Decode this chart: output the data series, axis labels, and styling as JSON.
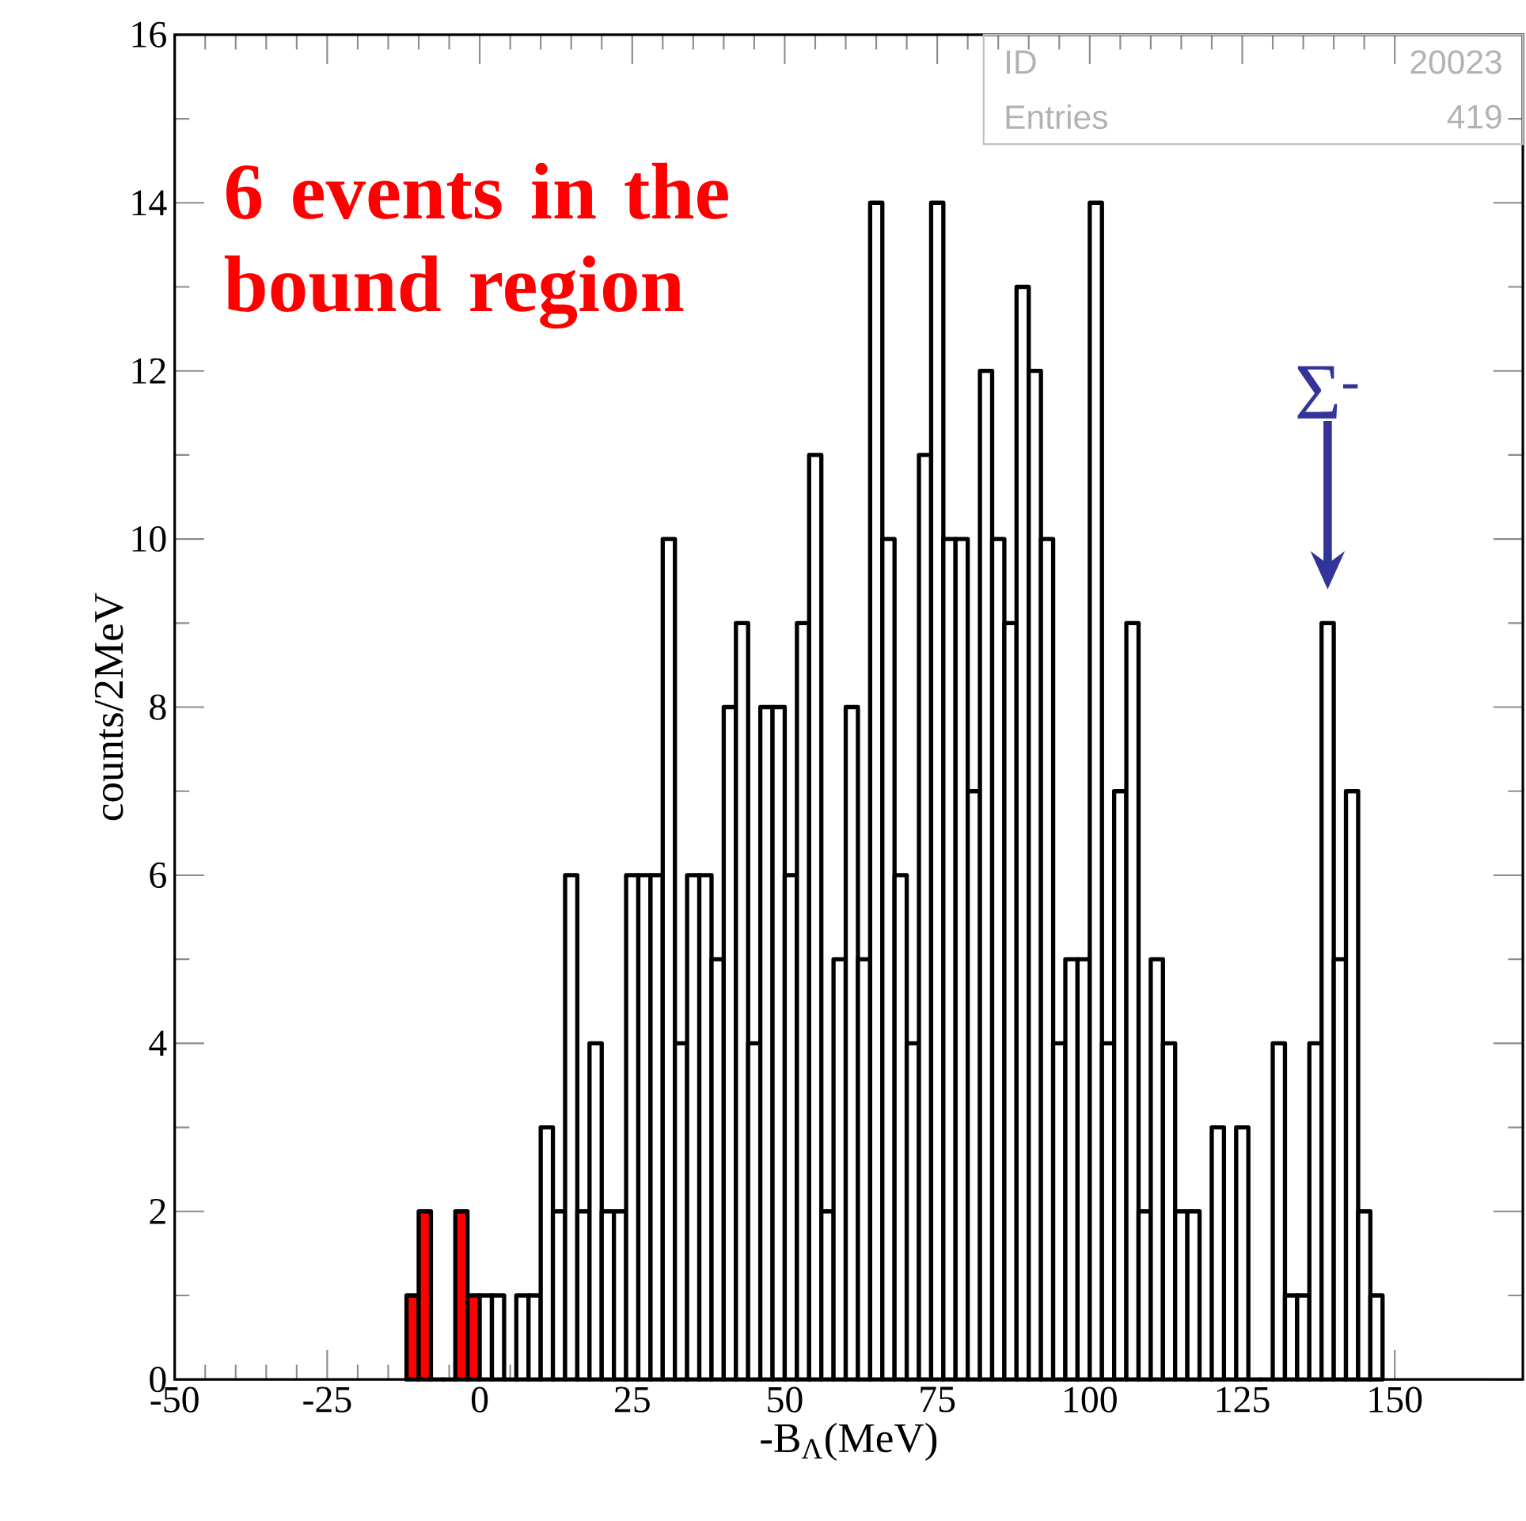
{
  "chart_data": {
    "type": "histogram",
    "xlabel": "-B$_{Λ}$(MeV)",
    "ylabel": "counts/2MeV",
    "bins": [
      -12,
      -10,
      -8,
      -6,
      -4,
      -2,
      0,
      2,
      4,
      6,
      8,
      10,
      12,
      14,
      16,
      18,
      20,
      22,
      24,
      26,
      28,
      30,
      32,
      34,
      36,
      38,
      40,
      42,
      44,
      46,
      48,
      50,
      52,
      54,
      56,
      58,
      60,
      62,
      64,
      66,
      68,
      70,
      72,
      74,
      76,
      78,
      80,
      82,
      84,
      86,
      88,
      90,
      92,
      94,
      96,
      98,
      100,
      102,
      104,
      106,
      108,
      110,
      112,
      114,
      116,
      118,
      120,
      122,
      124,
      126,
      128,
      130,
      132,
      134,
      136,
      138,
      140,
      142,
      144,
      146,
      148
    ],
    "values": [
      1,
      2,
      0,
      0,
      2,
      1,
      1,
      1,
      0,
      1,
      1,
      3,
      2,
      6,
      2,
      4,
      2,
      2,
      6,
      6,
      6,
      10,
      4,
      6,
      6,
      5,
      8,
      9,
      4,
      8,
      8,
      6,
      9,
      11,
      2,
      5,
      8,
      5,
      14,
      10,
      6,
      4,
      11,
      14,
      10,
      10,
      7,
      12,
      10,
      9,
      13,
      12,
      10,
      4,
      5,
      5,
      14,
      4,
      7,
      9,
      2,
      5,
      4,
      2,
      2,
      0,
      3,
      0,
      3,
      0,
      0,
      4,
      1,
      1,
      4,
      9,
      5,
      7,
      2,
      1
    ],
    "colors": [
      "#ff0000",
      "#ff0000",
      "#ff0000",
      "#ff0000",
      "#ff0000",
      "#ff0000",
      "#ffffff",
      "#ffffff",
      "#ffffff",
      "#ffffff",
      "#ffffff",
      "#ffffff",
      "#ffffff",
      "#ffffff",
      "#ffffff",
      "#ffffff",
      "#ffffff",
      "#ffffff",
      "#ffffff",
      "#ffffff",
      "#ffffff",
      "#ffffff",
      "#ffffff",
      "#ffffff",
      "#ffffff",
      "#ffffff",
      "#ffffff",
      "#ffffff",
      "#ffffff",
      "#ffffff",
      "#ffffff",
      "#ffffff",
      "#ffffff",
      "#ffffff",
      "#ffffff",
      "#ffffff",
      "#ffffff",
      "#ffffff",
      "#ffffff",
      "#ffffff",
      "#ffffff",
      "#ffffff",
      "#ffffff",
      "#ffffff",
      "#ffffff",
      "#ffffff",
      "#ffffff",
      "#ffffff",
      "#ffffff",
      "#ffffff",
      "#ffffff",
      "#ffffff",
      "#ffffff",
      "#ffffff",
      "#ffffff",
      "#ffffff",
      "#ffffff",
      "#ffffff",
      "#ffffff",
      "#ffffff",
      "#ffffff",
      "#ffffff",
      "#ffffff",
      "#ffffff",
      "#ffffff",
      "#ffffff",
      "#ffffff",
      "#ffffff",
      "#ffffff",
      "#ffffff",
      "#ffffff",
      "#ffffff",
      "#ffffff",
      "#ffffff",
      "#ffffff",
      "#ffffff",
      "#ffffff",
      "#ffffff",
      "#ffffff",
      "#ffffff"
    ],
    "xlim": [
      -50,
      171
    ],
    "ylim": [
      0,
      16
    ],
    "xticks": [
      -50,
      -25,
      0,
      25,
      50,
      75,
      100,
      125,
      150
    ],
    "yticks": [
      0,
      2,
      4,
      6,
      8,
      10,
      12,
      14,
      16
    ],
    "annotations": [
      "6 events in the bound region",
      {
        "text": "Σ$^{-}$",
        "x": 139,
        "y": 9
      },
      "ID",
      "20023",
      "Entries",
      "419"
    ]
  }
}
